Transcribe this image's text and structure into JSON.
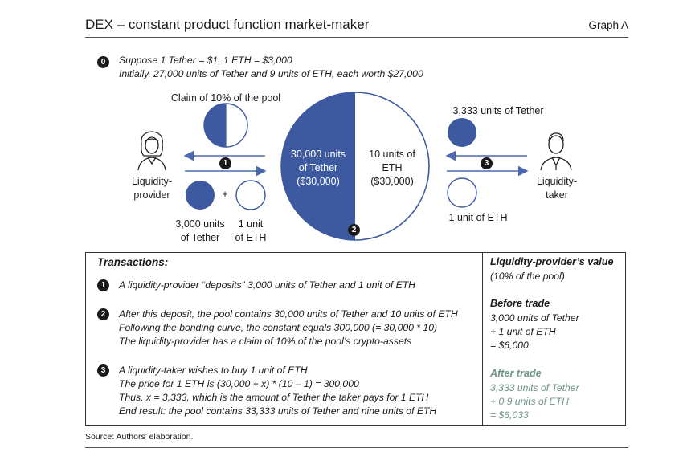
{
  "header": {
    "title": "DEX – constant product function market-maker",
    "graph_label": "Graph A"
  },
  "intro": {
    "marker": "0",
    "line1": "Suppose 1 Tether = $1, 1 ETH = $3,000",
    "line2": "Initially, 27,000 units of Tether and 9 units of ETH, each worth $27,000"
  },
  "diagram": {
    "claim_label": "Claim of 10% of the pool",
    "lp_label_1": "Liquidity-",
    "lp_label_2": "provider",
    "lt_label_1": "Liquidity-",
    "lt_label_2": "taker",
    "lp_tether_1": "3,000 units",
    "lp_tether_2": "of Tether",
    "lp_eth_1": "1 unit",
    "lp_eth_2": "of ETH",
    "plus": "+",
    "pool_left_1": "30,000 units",
    "pool_left_2": "of Tether",
    "pool_left_3": "($30,000)",
    "pool_right_1": "10 units of",
    "pool_right_2": "ETH",
    "pool_right_3": "($30,000)",
    "lt_tether": "3,333 units of Tether",
    "lt_eth": "1 unit of ETH",
    "marker1": "1",
    "marker2": "2",
    "marker3": "3",
    "colors": {
      "tether": "#3d5aa1",
      "arrow": "#4a68b0",
      "outline": "#3d5aa1"
    }
  },
  "transactions": {
    "heading": "Transactions:",
    "m1": "1",
    "t1_line1": "A liquidity-provider “deposits” 3,000 units of Tether and 1 unit of ETH",
    "m2": "2",
    "t2_line1": "After this deposit, the pool contains 30,000 units of Tether and 10 units of ETH",
    "t2_line2": "Following the bonding curve, the constant equals 300,000 (= 30,000 * 10)",
    "t2_line3": "The liquidity-provider has a claim of 10% of the pool’s crypto-assets",
    "m3": "3",
    "t3_line1": "A liquidity-taker wishes to buy 1 unit of ETH",
    "t3_line2": "The price for 1 ETH is (30,000 + x) * (10 – 1) = 300,000",
    "t3_line3": "Thus, x = 3,333, which is the amount of Tether the taker pays for 1 ETH",
    "t3_line4": "End result: the pool contains 33,333 units of Tether and nine units of ETH"
  },
  "value_panel": {
    "heading": "Liquidity-provider’s value",
    "subheading": "(10% of the pool)",
    "before_heading": "Before trade",
    "before_1": "3,000 units of Tether",
    "before_2": "+ 1 unit of ETH",
    "before_3": "= $6,000",
    "after_heading": "After trade",
    "after_1": "3,333 units of Tether",
    "after_2": "+ 0.9 units of ETH",
    "after_3": "= $6,033",
    "after_color": "#6e9484"
  },
  "footer": {
    "source": "Source: Authors’ elaboration."
  }
}
